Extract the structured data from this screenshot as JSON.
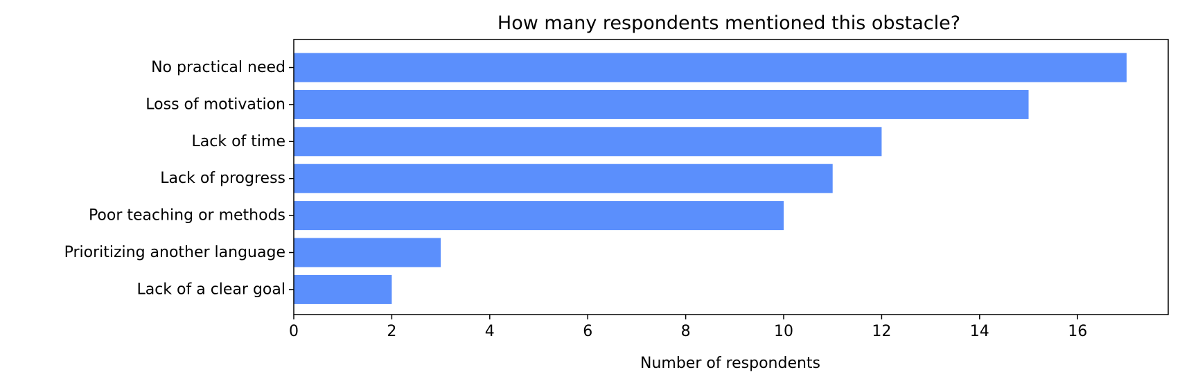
{
  "chart_data": {
    "type": "bar",
    "orientation": "horizontal",
    "title": "How many respondents mentioned this obstacle?",
    "xlabel": "Number of respondents",
    "ylabel": "",
    "categories": [
      "No practical need",
      "Loss of motivation",
      "Lack of time",
      "Lack of progress",
      "Poor teaching or methods",
      "Prioritizing another language",
      "Lack of a clear goal"
    ],
    "values": [
      17,
      15,
      12,
      11,
      10,
      3,
      2
    ],
    "xlim": [
      0,
      17.85
    ],
    "xticks": [
      0,
      2,
      4,
      6,
      8,
      10,
      12,
      14,
      16
    ],
    "grid": false,
    "bar_color": "#5b8ffc"
  }
}
